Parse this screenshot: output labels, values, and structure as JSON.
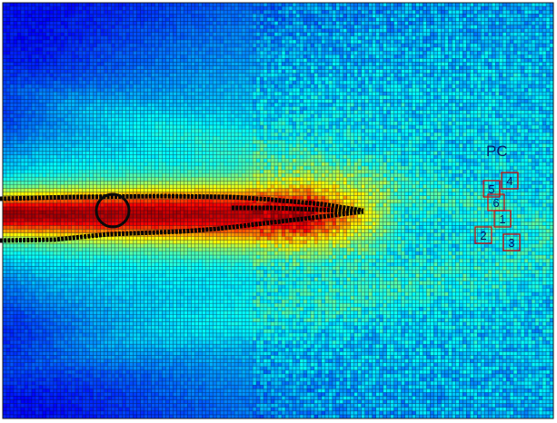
{
  "chart_data": {
    "type": "heatmap",
    "title": "",
    "xlabel": "",
    "ylabel": "",
    "colormap": "jet",
    "grid": true,
    "legend": "none",
    "rows": 112,
    "cols": 152,
    "cell_value_range": [
      0,
      1
    ],
    "annotations": {
      "tx_label": "PC",
      "receiver_labels": [
        "1",
        "2",
        "3",
        "4",
        "5",
        "6"
      ],
      "receiver_box_color": "#cc1010",
      "marker": "circle"
    },
    "beam": {
      "core_value": 0.85,
      "edge_value": 0.25,
      "background_value": 0.12
    }
  }
}
